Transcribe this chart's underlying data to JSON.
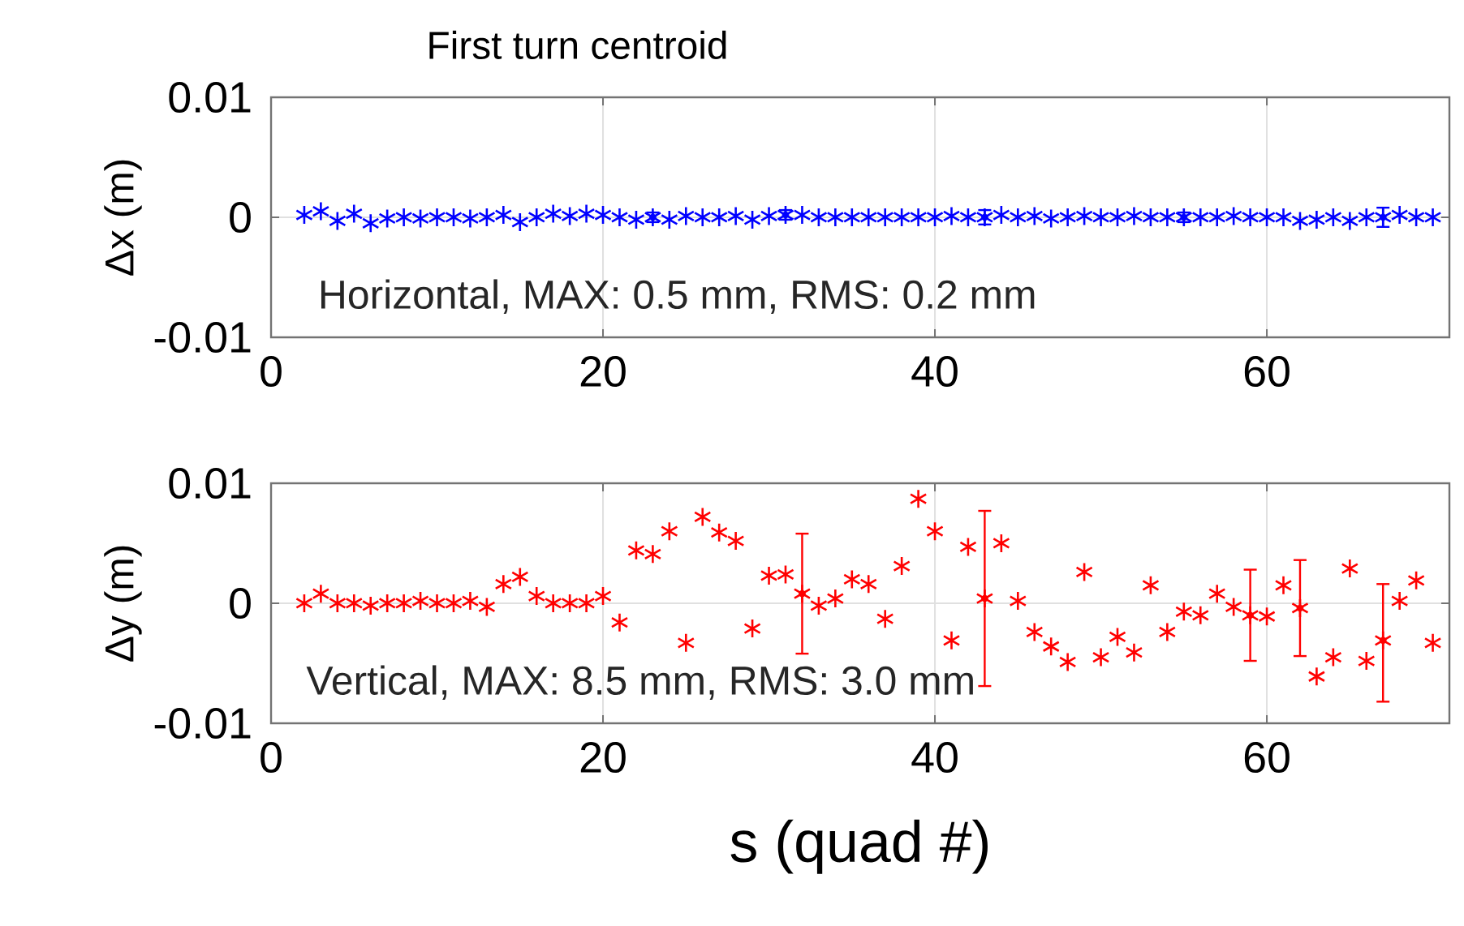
{
  "chart_data": [
    {
      "type": "scatter",
      "title": "First turn centroid",
      "ylabel": "Δx (m)",
      "annotations": [
        "Horizontal, MAX: 0.5 mm, RMS: 0.2 mm"
      ],
      "x": [
        2,
        3,
        4,
        5,
        6,
        7,
        8,
        9,
        10,
        11,
        12,
        13,
        14,
        15,
        16,
        17,
        18,
        19,
        20,
        21,
        22,
        23,
        24,
        25,
        26,
        27,
        28,
        29,
        30,
        31,
        32,
        33,
        34,
        35,
        36,
        37,
        38,
        39,
        40,
        41,
        42,
        43,
        44,
        45,
        46,
        47,
        48,
        49,
        50,
        51,
        52,
        53,
        54,
        55,
        56,
        57,
        58,
        59,
        60,
        61,
        62,
        63,
        64,
        65,
        66,
        67,
        68,
        69,
        70
      ],
      "series": [
        {
          "color": "#0000ff",
          "values": [
            0.0002,
            0.0005,
            -0.0003,
            0.0003,
            -0.0005,
            -0.0001,
            0,
            -0.0001,
            0,
            0,
            -0.0001,
            0,
            0.0002,
            -0.0004,
            0,
            0.0003,
            0.0001,
            0.0003,
            0.0002,
            0,
            -0.0002,
            0,
            -0.0002,
            0.0001,
            0,
            0,
            0.0001,
            -0.0002,
            0.0001,
            0.0002,
            0.0002,
            0,
            0,
            0,
            0,
            0,
            0,
            0,
            0,
            0.0001,
            0,
            0,
            0.0002,
            0,
            0.0001,
            -0.0001,
            0,
            0.0001,
            0,
            0,
            0.0001,
            0,
            0,
            0,
            0,
            0,
            0.0001,
            0,
            0,
            0,
            -0.0003,
            -0.0002,
            0,
            -0.0003,
            0,
            0,
            0.0002,
            0,
            0
          ],
          "errors": [
            null,
            null,
            null,
            null,
            null,
            null,
            null,
            null,
            null,
            null,
            null,
            null,
            null,
            null,
            null,
            null,
            null,
            null,
            null,
            null,
            null,
            0.0004,
            null,
            null,
            null,
            null,
            null,
            null,
            null,
            0.0004,
            null,
            null,
            null,
            null,
            null,
            null,
            null,
            null,
            null,
            null,
            null,
            0.0006,
            null,
            null,
            null,
            null,
            null,
            null,
            null,
            null,
            null,
            null,
            null,
            0.0004,
            null,
            null,
            null,
            null,
            null,
            null,
            null,
            null,
            null,
            null,
            null,
            0.0008,
            null,
            null,
            null
          ]
        }
      ],
      "marker": "cross",
      "grid": true,
      "xlim": [
        0,
        71
      ],
      "ylim": [
        -0.01,
        0.01
      ],
      "xticks": [
        0,
        20,
        40,
        60
      ],
      "yticks": [
        -0.01,
        0,
        0.01
      ]
    },
    {
      "type": "scatter",
      "xlabel": "s (quad #)",
      "ylabel": "Δy (m)",
      "annotations": [
        "Vertical, MAX: 8.5 mm, RMS: 3.0 mm"
      ],
      "x": [
        2,
        3,
        4,
        5,
        6,
        7,
        8,
        9,
        10,
        11,
        12,
        13,
        14,
        15,
        16,
        17,
        18,
        19,
        20,
        21,
        22,
        23,
        24,
        25,
        26,
        27,
        28,
        29,
        30,
        31,
        32,
        33,
        34,
        35,
        36,
        37,
        38,
        39,
        40,
        41,
        42,
        43,
        44,
        45,
        46,
        47,
        48,
        49,
        50,
        51,
        52,
        53,
        54,
        55,
        56,
        57,
        58,
        59,
        60,
        61,
        62,
        63,
        64,
        65,
        66,
        67,
        68,
        69,
        70
      ],
      "series": [
        {
          "color": "#ff0000",
          "values": [
            0,
            0.0008,
            0,
            0,
            -0.0002,
            0,
            0,
            0.0002,
            0,
            0,
            0.0002,
            -0.0003,
            0.0016,
            0.0022,
            0.0006,
            0,
            0,
            0,
            0.0006,
            -0.0016,
            0.0044,
            0.0041,
            0.006,
            -0.0033,
            0.0072,
            0.0059,
            0.0052,
            -0.0021,
            0.0023,
            0.0024,
            0.0008,
            -0.0002,
            0.0004,
            0.002,
            0.0016,
            -0.0013,
            0.0031,
            0.0087,
            0.006,
            -0.0031,
            0.0047,
            0.0004,
            0.005,
            0.0002,
            -0.0024,
            -0.0036,
            -0.0049,
            0.0026,
            -0.0045,
            -0.0028,
            -0.0041,
            0.0015,
            -0.0024,
            -0.0007,
            -0.001,
            0.0008,
            -0.0003,
            -0.001,
            -0.0011,
            0.0015,
            -0.0004,
            -0.0061,
            -0.0045,
            0.0029,
            -0.0048,
            -0.0031,
            0.0002,
            0.0019,
            -0.0033
          ],
          "errors": [
            null,
            null,
            null,
            null,
            null,
            null,
            null,
            null,
            null,
            null,
            null,
            null,
            null,
            null,
            null,
            null,
            null,
            null,
            null,
            null,
            null,
            null,
            null,
            null,
            null,
            null,
            null,
            null,
            null,
            null,
            0.005,
            null,
            null,
            null,
            null,
            null,
            null,
            null,
            null,
            null,
            null,
            0.0073,
            null,
            null,
            null,
            null,
            null,
            null,
            null,
            null,
            null,
            null,
            null,
            null,
            null,
            null,
            null,
            0.0038,
            null,
            null,
            0.004,
            null,
            null,
            null,
            null,
            [
              -0.0082,
              0.0016
            ],
            null,
            null,
            null
          ]
        }
      ],
      "marker": "cross",
      "grid": true,
      "xlim": [
        0,
        71
      ],
      "ylim": [
        -0.01,
        0.01
      ],
      "xticks": [
        0,
        20,
        40,
        60
      ],
      "yticks": [
        -0.01,
        0,
        0.01
      ]
    }
  ]
}
